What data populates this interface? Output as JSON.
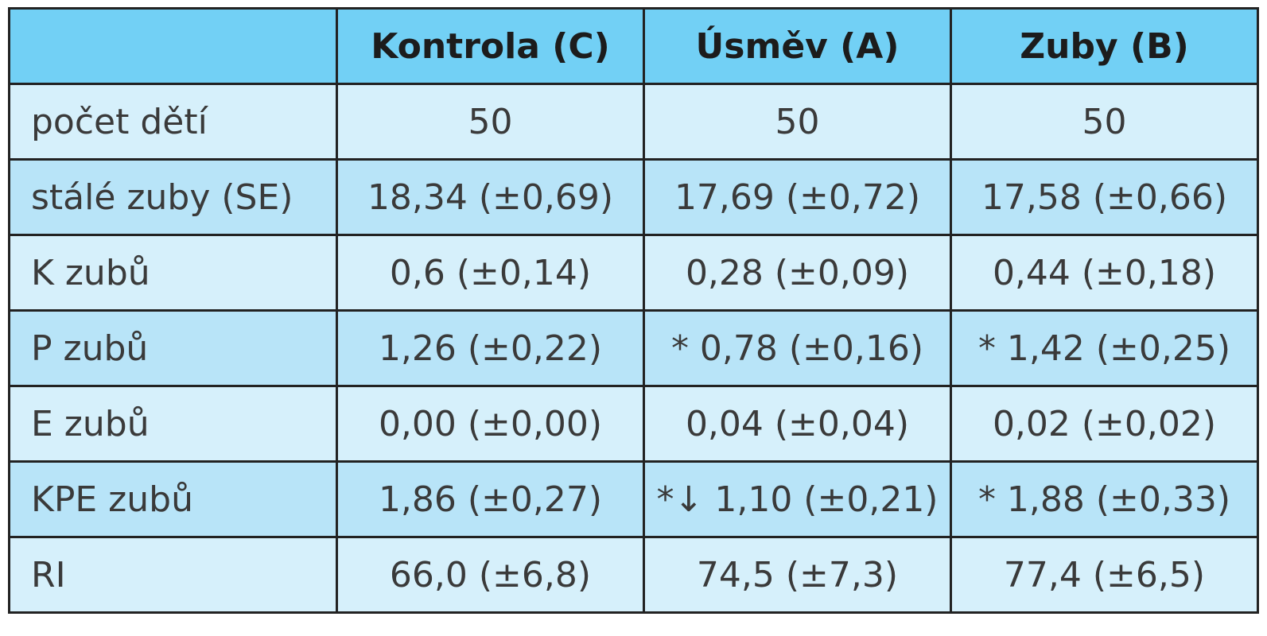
{
  "table": {
    "header": [
      "Kontrola (C)",
      "Úsměv (A)",
      "Zuby (B)"
    ],
    "rows": [
      [
        "počet dětí",
        "50",
        "50",
        "50"
      ],
      [
        "stálé zuby (SE)",
        "18,34 (±0,69)",
        "17,69 (±0,72)",
        "17,58 (±0,66)"
      ],
      [
        "K zubů",
        "0,6 (±0,14)",
        "0,28 (±0,09)",
        "0,44 (±0,18)"
      ],
      [
        "P zubů",
        "1,26 (±0,22)",
        "* 0,78 (±0,16)",
        "* 1,42 (±0,25)"
      ],
      [
        "E zubů",
        "0,00 (±0,00)",
        "0,04 (±0,04)",
        "0,02 (±0,02)"
      ],
      [
        "KPE zubů",
        "1,86 (±0,27)",
        "*↓ 1,10 (±0,21)",
        "* 1,88 (±0,33)"
      ],
      [
        "RI",
        "66,0 (±6,8)",
        "74,5 (±7,3)",
        "77,4 (±6,5)"
      ]
    ]
  }
}
